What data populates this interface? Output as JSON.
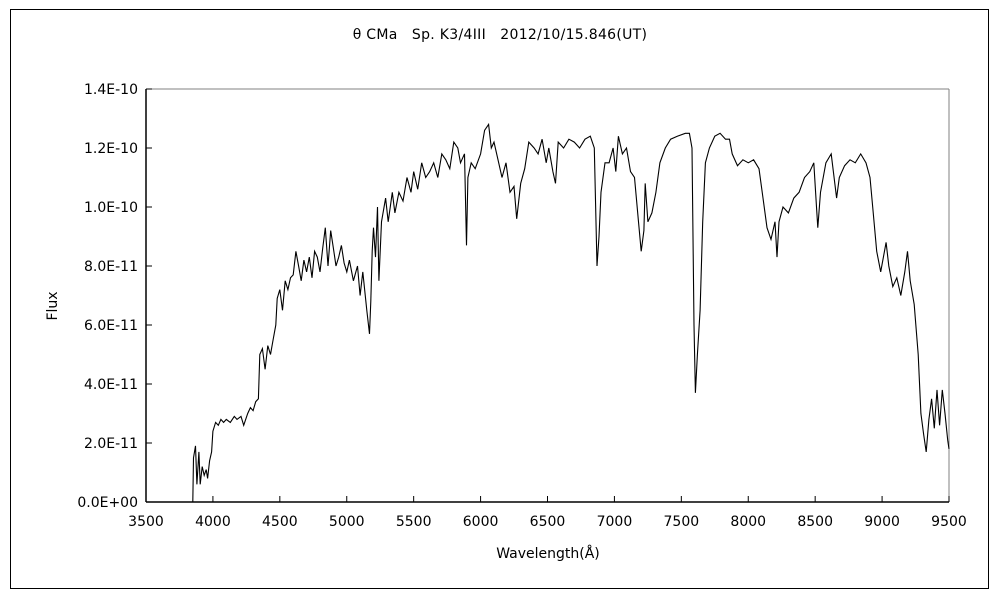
{
  "chart_data": {
    "type": "line",
    "title": "θ CMa　Sp. K3/4III　2012/10/15.846(UT)",
    "xlabel": "Wavelength(Å)",
    "ylabel": "Flux",
    "xlim": [
      3500,
      9500
    ],
    "ylim": [
      0,
      1.4e-10
    ],
    "grid": false,
    "x_ticks": [
      "3500",
      "4000",
      "4500",
      "5000",
      "5500",
      "6000",
      "6500",
      "7000",
      "7500",
      "8000",
      "8500",
      "9000",
      "9500"
    ],
    "y_ticks": [
      "0.0E+00",
      "2.0E-11",
      "4.0E-11",
      "6.0E-11",
      "8.0E-11",
      "1.0E-10",
      "1.2E-10",
      "1.4E-10"
    ],
    "line_color": "#000000",
    "points": [
      [
        3850,
        0
      ],
      [
        3855,
        1.5e-11
      ],
      [
        3870,
        1.9e-11
      ],
      [
        3880,
        6e-12
      ],
      [
        3895,
        1.7e-11
      ],
      [
        3905,
        6e-12
      ],
      [
        3920,
        1.2e-11
      ],
      [
        3935,
        9e-12
      ],
      [
        3950,
        1.1e-11
      ],
      [
        3960,
        8e-12
      ],
      [
        3975,
        1.4e-11
      ],
      [
        3990,
        1.7e-11
      ],
      [
        4000,
        2.4e-11
      ],
      [
        4020,
        2.7e-11
      ],
      [
        4040,
        2.6e-11
      ],
      [
        4060,
        2.8e-11
      ],
      [
        4080,
        2.7e-11
      ],
      [
        4100,
        2.8e-11
      ],
      [
        4130,
        2.7e-11
      ],
      [
        4160,
        2.9e-11
      ],
      [
        4180,
        2.8e-11
      ],
      [
        4210,
        2.9e-11
      ],
      [
        4230,
        2.6e-11
      ],
      [
        4260,
        3e-11
      ],
      [
        4280,
        3.2e-11
      ],
      [
        4300,
        3.1e-11
      ],
      [
        4320,
        3.4e-11
      ],
      [
        4340,
        3.5e-11
      ],
      [
        4350,
        5e-11
      ],
      [
        4370,
        5.2e-11
      ],
      [
        4390,
        4.5e-11
      ],
      [
        4410,
        5.3e-11
      ],
      [
        4430,
        5e-11
      ],
      [
        4450,
        5.5e-11
      ],
      [
        4470,
        6e-11
      ],
      [
        4480,
        6.9e-11
      ],
      [
        4500,
        7.2e-11
      ],
      [
        4520,
        6.5e-11
      ],
      [
        4540,
        7.5e-11
      ],
      [
        4560,
        7.2e-11
      ],
      [
        4580,
        7.6e-11
      ],
      [
        4600,
        7.7e-11
      ],
      [
        4620,
        8.5e-11
      ],
      [
        4640,
        8e-11
      ],
      [
        4660,
        7.5e-11
      ],
      [
        4680,
        8.2e-11
      ],
      [
        4700,
        7.8e-11
      ],
      [
        4720,
        8.3e-11
      ],
      [
        4740,
        7.6e-11
      ],
      [
        4760,
        8.5e-11
      ],
      [
        4780,
        8.3e-11
      ],
      [
        4800,
        7.8e-11
      ],
      [
        4820,
        8.6e-11
      ],
      [
        4840,
        9.3e-11
      ],
      [
        4860,
        8e-11
      ],
      [
        4880,
        9.2e-11
      ],
      [
        4900,
        8.6e-11
      ],
      [
        4920,
        8e-11
      ],
      [
        4940,
        8.3e-11
      ],
      [
        4960,
        8.7e-11
      ],
      [
        4980,
        8.1e-11
      ],
      [
        5000,
        7.8e-11
      ],
      [
        5020,
        8.2e-11
      ],
      [
        5050,
        7.5e-11
      ],
      [
        5080,
        8e-11
      ],
      [
        5100,
        7e-11
      ],
      [
        5120,
        7.8e-11
      ],
      [
        5150,
        6.5e-11
      ],
      [
        5170,
        5.7e-11
      ],
      [
        5180,
        6.8e-11
      ],
      [
        5190,
        8.5e-11
      ],
      [
        5200,
        9.3e-11
      ],
      [
        5215,
        8.3e-11
      ],
      [
        5230,
        1e-10
      ],
      [
        5240,
        7.5e-11
      ],
      [
        5260,
        9.5e-11
      ],
      [
        5290,
        1.03e-10
      ],
      [
        5310,
        9.5e-11
      ],
      [
        5340,
        1.05e-10
      ],
      [
        5360,
        9.8e-11
      ],
      [
        5390,
        1.05e-10
      ],
      [
        5420,
        1.02e-10
      ],
      [
        5450,
        1.1e-10
      ],
      [
        5480,
        1.05e-10
      ],
      [
        5500,
        1.12e-10
      ],
      [
        5530,
        1.06e-10
      ],
      [
        5560,
        1.15e-10
      ],
      [
        5590,
        1.1e-10
      ],
      [
        5620,
        1.12e-10
      ],
      [
        5650,
        1.15e-10
      ],
      [
        5680,
        1.1e-10
      ],
      [
        5710,
        1.18e-10
      ],
      [
        5740,
        1.16e-10
      ],
      [
        5770,
        1.13e-10
      ],
      [
        5800,
        1.22e-10
      ],
      [
        5830,
        1.2e-10
      ],
      [
        5850,
        1.15e-10
      ],
      [
        5880,
        1.18e-10
      ],
      [
        5895,
        8.7e-11
      ],
      [
        5905,
        1.1e-10
      ],
      [
        5930,
        1.15e-10
      ],
      [
        5960,
        1.13e-10
      ],
      [
        6000,
        1.18e-10
      ],
      [
        6030,
        1.26e-10
      ],
      [
        6060,
        1.28e-10
      ],
      [
        6080,
        1.2e-10
      ],
      [
        6100,
        1.22e-10
      ],
      [
        6130,
        1.16e-10
      ],
      [
        6160,
        1.1e-10
      ],
      [
        6190,
        1.15e-10
      ],
      [
        6220,
        1.05e-10
      ],
      [
        6250,
        1.07e-10
      ],
      [
        6270,
        9.6e-11
      ],
      [
        6300,
        1.08e-10
      ],
      [
        6330,
        1.13e-10
      ],
      [
        6360,
        1.22e-10
      ],
      [
        6400,
        1.2e-10
      ],
      [
        6430,
        1.18e-10
      ],
      [
        6460,
        1.23e-10
      ],
      [
        6490,
        1.15e-10
      ],
      [
        6510,
        1.2e-10
      ],
      [
        6540,
        1.12e-10
      ],
      [
        6560,
        1.08e-10
      ],
      [
        6580,
        1.22e-10
      ],
      [
        6620,
        1.2e-10
      ],
      [
        6660,
        1.23e-10
      ],
      [
        6700,
        1.22e-10
      ],
      [
        6740,
        1.2e-10
      ],
      [
        6780,
        1.23e-10
      ],
      [
        6820,
        1.24e-10
      ],
      [
        6850,
        1.2e-10
      ],
      [
        6870,
        8e-11
      ],
      [
        6885,
        9e-11
      ],
      [
        6900,
        1.05e-10
      ],
      [
        6930,
        1.15e-10
      ],
      [
        6960,
        1.15e-10
      ],
      [
        6990,
        1.2e-10
      ],
      [
        7010,
        1.12e-10
      ],
      [
        7030,
        1.24e-10
      ],
      [
        7060,
        1.18e-10
      ],
      [
        7090,
        1.2e-10
      ],
      [
        7120,
        1.12e-10
      ],
      [
        7150,
        1.1e-10
      ],
      [
        7180,
        9.5e-11
      ],
      [
        7200,
        8.5e-11
      ],
      [
        7220,
        9.2e-11
      ],
      [
        7230,
        1.08e-10
      ],
      [
        7250,
        9.5e-11
      ],
      [
        7280,
        9.8e-11
      ],
      [
        7310,
        1.05e-10
      ],
      [
        7340,
        1.15e-10
      ],
      [
        7380,
        1.2e-10
      ],
      [
        7420,
        1.23e-10
      ],
      [
        7470,
        1.24e-10
      ],
      [
        7530,
        1.25e-10
      ],
      [
        7560,
        1.25e-10
      ],
      [
        7580,
        1.2e-10
      ],
      [
        7595,
        6e-11
      ],
      [
        7605,
        3.7e-11
      ],
      [
        7620,
        5e-11
      ],
      [
        7640,
        6.5e-11
      ],
      [
        7660,
        9.5e-11
      ],
      [
        7680,
        1.15e-10
      ],
      [
        7710,
        1.2e-10
      ],
      [
        7750,
        1.24e-10
      ],
      [
        7790,
        1.25e-10
      ],
      [
        7830,
        1.23e-10
      ],
      [
        7860,
        1.23e-10
      ],
      [
        7880,
        1.18e-10
      ],
      [
        7920,
        1.14e-10
      ],
      [
        7960,
        1.16e-10
      ],
      [
        8000,
        1.15e-10
      ],
      [
        8040,
        1.16e-10
      ],
      [
        8080,
        1.13e-10
      ],
      [
        8110,
        1.03e-10
      ],
      [
        8140,
        9.3e-11
      ],
      [
        8170,
        8.9e-11
      ],
      [
        8200,
        9.5e-11
      ],
      [
        8215,
        8.3e-11
      ],
      [
        8230,
        9.5e-11
      ],
      [
        8260,
        1e-10
      ],
      [
        8300,
        9.8e-11
      ],
      [
        8340,
        1.03e-10
      ],
      [
        8380,
        1.05e-10
      ],
      [
        8420,
        1.1e-10
      ],
      [
        8460,
        1.12e-10
      ],
      [
        8490,
        1.15e-10
      ],
      [
        8510,
        1e-10
      ],
      [
        8520,
        9.3e-11
      ],
      [
        8540,
        1.05e-10
      ],
      [
        8580,
        1.15e-10
      ],
      [
        8620,
        1.18e-10
      ],
      [
        8660,
        1.03e-10
      ],
      [
        8680,
        1.1e-10
      ],
      [
        8720,
        1.14e-10
      ],
      [
        8760,
        1.16e-10
      ],
      [
        8800,
        1.15e-10
      ],
      [
        8840,
        1.18e-10
      ],
      [
        8880,
        1.15e-10
      ],
      [
        8910,
        1.1e-10
      ],
      [
        8930,
        1e-10
      ],
      [
        8960,
        8.5e-11
      ],
      [
        8990,
        7.8e-11
      ],
      [
        9010,
        8.3e-11
      ],
      [
        9030,
        8.8e-11
      ],
      [
        9050,
        8e-11
      ],
      [
        9080,
        7.3e-11
      ],
      [
        9110,
        7.6e-11
      ],
      [
        9140,
        7e-11
      ],
      [
        9170,
        7.8e-11
      ],
      [
        9190,
        8.5e-11
      ],
      [
        9210,
        7.5e-11
      ],
      [
        9240,
        6.7e-11
      ],
      [
        9270,
        5e-11
      ],
      [
        9290,
        3e-11
      ],
      [
        9310,
        2.3e-11
      ],
      [
        9330,
        1.7e-11
      ],
      [
        9350,
        2.8e-11
      ],
      [
        9370,
        3.5e-11
      ],
      [
        9390,
        2.5e-11
      ],
      [
        9410,
        3.8e-11
      ],
      [
        9430,
        2.6e-11
      ],
      [
        9450,
        3.8e-11
      ],
      [
        9470,
        3e-11
      ],
      [
        9490,
        2.1e-11
      ],
      [
        9500,
        1.8e-11
      ]
    ]
  }
}
